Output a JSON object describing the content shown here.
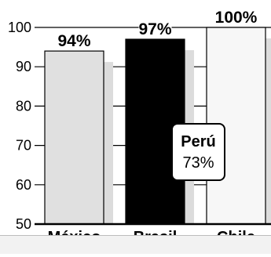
{
  "chart_data": {
    "type": "bar",
    "ylim": [
      50,
      100
    ],
    "yticks": [
      50,
      60,
      70,
      80,
      90,
      100
    ],
    "ytick_labels": [
      "50",
      "60",
      "70",
      "80",
      "90",
      "100"
    ],
    "grid": true,
    "categories": [
      "México",
      "Brasil",
      "Chile"
    ],
    "values": [
      94,
      97,
      100
    ],
    "value_labels": [
      "94%",
      "97%",
      "100%"
    ],
    "bar_colors": [
      "#e0e0e0",
      "#000000",
      "#f7f7f7"
    ],
    "reference": {
      "name": "Perú",
      "value": 73,
      "label": "73%"
    }
  }
}
